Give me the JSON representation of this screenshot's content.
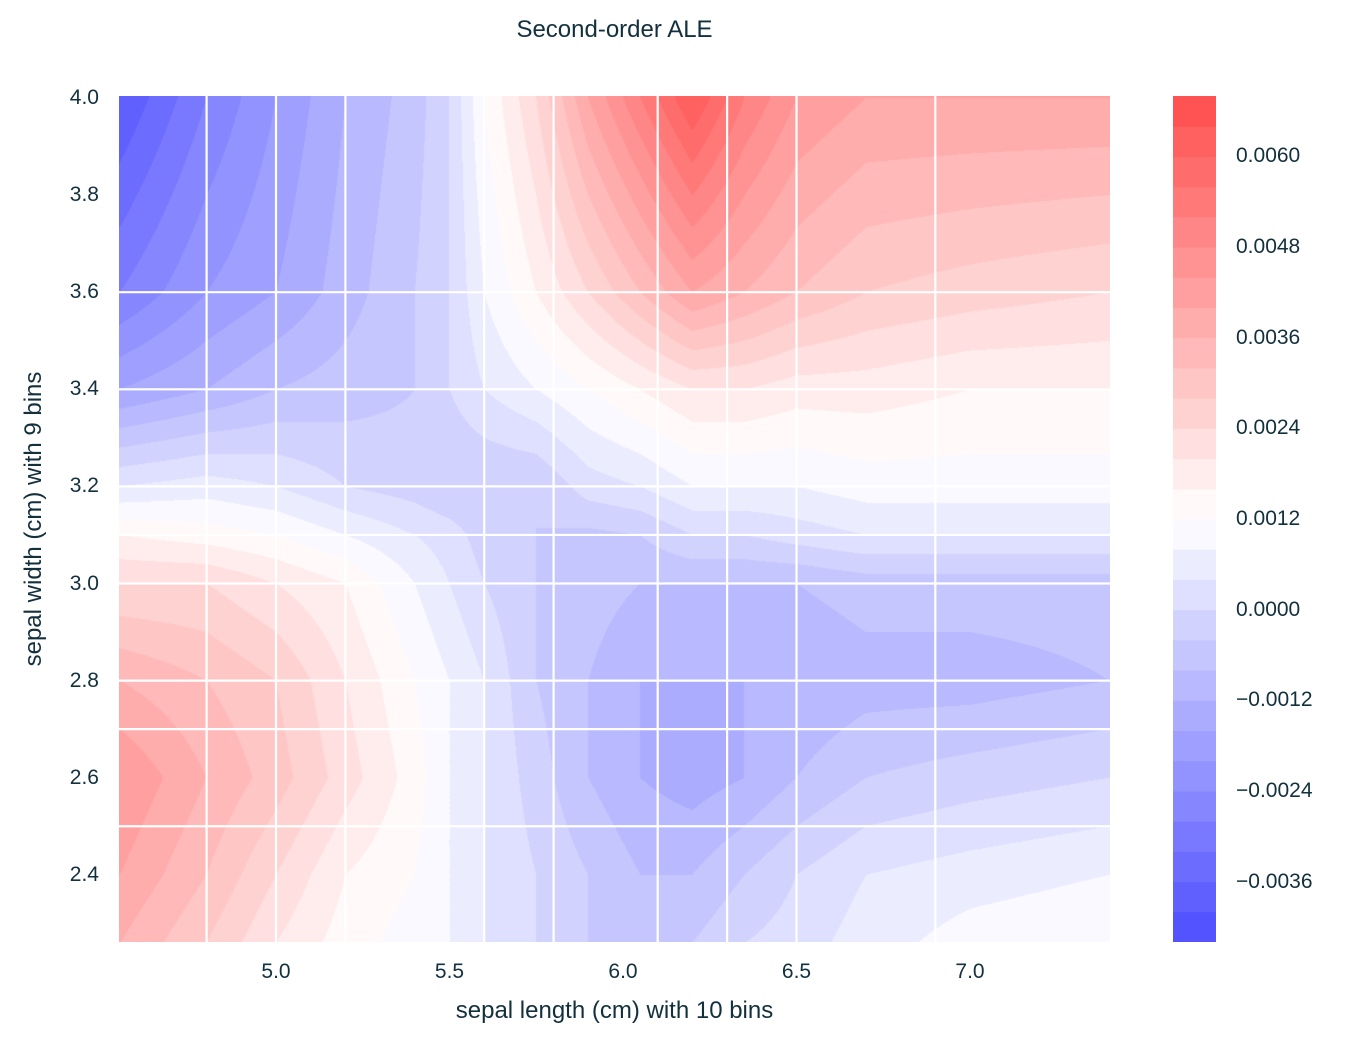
{
  "chart_data": {
    "type": "heatmap",
    "style": "filled-contour",
    "title": "Second-order ALE",
    "xlabel": "sepal length (cm) with 10 bins",
    "ylabel": "sepal width (cm) with 9 bins",
    "xlim": [
      4.55,
      7.405
    ],
    "ylim": [
      2.258,
      4.0
    ],
    "x_ticks": [
      "5.0",
      "5.5",
      "6.0",
      "6.5",
      "7.0"
    ],
    "y_ticks": [
      "2.4",
      "2.6",
      "2.8",
      "3.0",
      "3.2",
      "3.4",
      "3.6",
      "3.8",
      "4.0"
    ],
    "x_bin_edges": [
      4.8,
      5.0,
      5.2,
      5.6,
      5.8,
      6.1,
      6.3,
      6.5,
      6.9
    ],
    "y_bin_edges": [
      2.5,
      2.7,
      2.8,
      3.0,
      3.1,
      3.2,
      3.4,
      3.6
    ],
    "grid": true,
    "colormap": "bwr",
    "color_low": "#4a4afc",
    "color_high": "#fc4a4a",
    "colorbar": {
      "range": [
        -0.0044,
        0.0068
      ],
      "level_step": 0.0004,
      "ticks": [
        "0.0060",
        "0.0048",
        "0.0036",
        "0.0024",
        "0.0012",
        "0.0000",
        "−0.0012",
        "−0.0024",
        "−0.0036"
      ],
      "position": "right"
    },
    "x": [
      4.55,
      4.8,
      5.0,
      5.2,
      5.4,
      5.5,
      5.6,
      5.75,
      5.9,
      6.05,
      6.2,
      6.35,
      6.5,
      6.7,
      7.0,
      7.4
    ],
    "y": [
      2.26,
      2.4,
      2.6,
      2.8,
      3.0,
      3.1,
      3.2,
      3.4,
      3.6,
      4.0
    ],
    "z": [
      [
        0.0036,
        0.0028,
        0.002,
        0.0014,
        0.001,
        0.0008,
        0.0004,
        0,
        -0.0004,
        -0.0004,
        -0.0004,
        0,
        0.0002,
        0.0006,
        0.001,
        0.0012
      ],
      [
        0.004,
        0.0032,
        0.0024,
        0.0016,
        0.0012,
        0.0008,
        0.0004,
        0,
        -0.0004,
        -0.0008,
        -0.0008,
        -0.0004,
        0,
        0.0004,
        0.0006,
        0.0008
      ],
      [
        0.0044,
        0.0036,
        0.003,
        0.0022,
        0.0014,
        0.0008,
        0.0004,
        -0.0002,
        -0.0008,
        -0.0012,
        -0.0014,
        -0.0012,
        -0.0008,
        -0.0004,
        -0.0002,
        0
      ],
      [
        0.0036,
        0.0032,
        0.0028,
        0.002,
        0.0012,
        0.0008,
        0.0004,
        -0.0004,
        -0.0008,
        -0.0012,
        -0.0012,
        -0.0012,
        -0.0012,
        -0.001,
        -0.001,
        -0.0008
      ],
      [
        0.0024,
        0.0024,
        0.002,
        0.0016,
        0.0008,
        0.0004,
        0,
        -0.0004,
        -0.0006,
        -0.0008,
        -0.0008,
        -0.0008,
        -0.0008,
        -0.0006,
        -0.0006,
        -0.0006
      ],
      [
        0.0016,
        0.0014,
        0.0012,
        0.0008,
        0.0004,
        0.0002,
        -0.0002,
        -0.0004,
        -0.0005,
        -0.0004,
        0,
        0,
        0.0002,
        0.0004,
        0.0004,
        0.0004
      ],
      [
        0.0004,
        0.0006,
        0.0004,
        0,
        -0.0002,
        -0.0004,
        -0.0004,
        -0.0004,
        0.0002,
        0.0004,
        0.0008,
        0.0008,
        0.0008,
        0.001,
        0.001,
        0.001
      ],
      [
        -0.0016,
        -0.0012,
        -0.0008,
        -0.0006,
        -0.0004,
        0,
        0.0004,
        0.0008,
        0.0012,
        0.0016,
        0.002,
        0.002,
        0.0018,
        0.0018,
        0.0016,
        0.0016
      ],
      [
        -0.0028,
        -0.002,
        -0.0016,
        -0.001,
        -0.0004,
        0,
        0.0008,
        0.0016,
        0.0024,
        0.0032,
        0.004,
        0.0036,
        0.0032,
        0.0028,
        0.0026,
        0.0024
      ],
      [
        -0.004,
        -0.0028,
        -0.002,
        -0.0012,
        -0.0006,
        0,
        0.0012,
        0.0024,
        0.004,
        0.0052,
        0.0064,
        0.0052,
        0.0044,
        0.004,
        0.004,
        0.004
      ]
    ]
  }
}
